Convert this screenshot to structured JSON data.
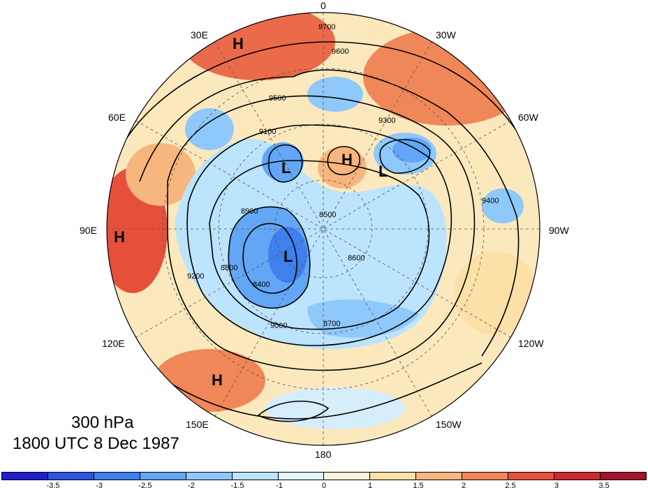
{
  "map": {
    "level_label": "300 hPa",
    "time_label": "1800 UTC 8 Dec 1987",
    "longitude_labels": [
      "0",
      "30W",
      "60W",
      "90W",
      "120W",
      "150W",
      "180",
      "150E",
      "120E",
      "90E",
      "60E",
      "30E"
    ],
    "pressure_centers": [
      "H",
      "H",
      "H",
      "H",
      "L",
      "L",
      "L"
    ],
    "contour_labels": [
      "9700",
      "9600",
      "9500",
      "9400",
      "9300",
      "9200",
      "9100",
      "9000",
      "8900",
      "8800",
      "8700",
      "8600",
      "8500",
      "8400"
    ]
  },
  "colorbar": {
    "labels": [
      "-3.5",
      "-3",
      "-2.5",
      "-2",
      "-1.5",
      "-1",
      "0",
      "1",
      "1.5",
      "2",
      "2.5",
      "3",
      "3.5"
    ],
    "colors": [
      "#1f1fd0",
      "#2a55e0",
      "#3d80ee",
      "#62a6f5",
      "#8fc8fb",
      "#bce4fd",
      "#e2f6fe",
      "#fdf6dc",
      "#fbe0a8",
      "#f7b67e",
      "#f08759",
      "#e6503b",
      "#cf2a2e",
      "#a5122a"
    ]
  }
}
